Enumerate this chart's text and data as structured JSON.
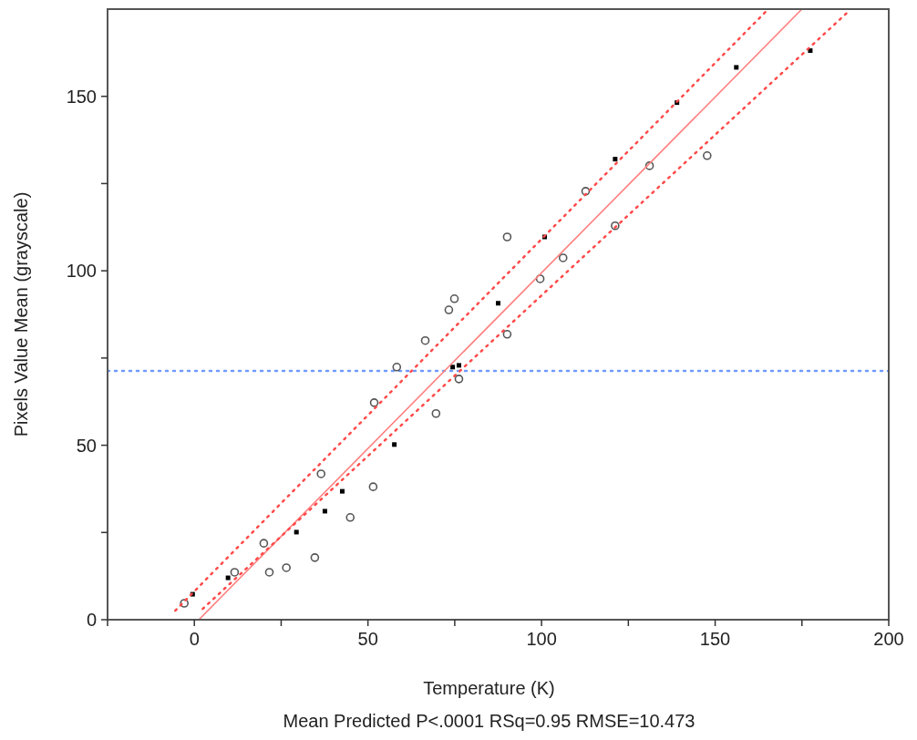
{
  "chart_data": {
    "type": "scatter",
    "xlabel": "Temperature (K)",
    "ylabel": "Pixels Value Mean (grayscale)",
    "annotations": [
      "Mean Predicted P<.0001 RSq=0.95 RMSE=10.473"
    ],
    "xlim": [
      -25,
      200
    ],
    "xticks": [
      {
        "value": -25,
        "label": null
      },
      0,
      {
        "value": 25,
        "label": null
      },
      50,
      {
        "value": 75,
        "label": null
      },
      100,
      {
        "value": 125,
        "label": null
      },
      150,
      {
        "value": 175,
        "label": null
      },
      200
    ],
    "ylim": [
      0,
      175
    ],
    "yticks": [
      0,
      {
        "value": 25,
        "label": null
      },
      50,
      {
        "value": 75,
        "label": null
      },
      100,
      {
        "value": 125,
        "label": null
      },
      150
    ],
    "grid": false,
    "ref_lines": [
      {
        "axis": "y",
        "value": 71.3,
        "color": "#6f9bff",
        "line_style": "dotted"
      }
    ],
    "series": [
      {
        "marker": "square",
        "color": "#000000",
        "x": [
          -0.5,
          9.7,
          29.4,
          37.6,
          42.6,
          57.6,
          74.4,
          76.2,
          87.5,
          100.9,
          121.2,
          139.0,
          156.1,
          177.4
        ],
        "values": [
          7.3,
          12.0,
          25.1,
          31.1,
          36.8,
          50.2,
          72.4,
          72.9,
          90.7,
          109.7,
          132.0,
          148.2,
          158.3,
          163.1
        ]
      },
      {
        "marker": "circle",
        "color": "#555555",
        "x": [
          -2.9,
          11.6,
          20.0,
          21.6,
          26.5,
          34.7,
          36.5,
          44.9,
          51.5,
          51.8,
          58.3,
          66.5,
          69.6,
          73.3,
          74.9,
          76.2,
          90.1,
          90.1,
          99.6,
          106.2,
          112.7,
          121.2,
          131.1,
          147.7
        ],
        "values": [
          4.7,
          13.6,
          21.9,
          13.6,
          14.9,
          17.8,
          41.8,
          29.3,
          38.1,
          62.2,
          72.4,
          80.0,
          59.1,
          88.8,
          92.0,
          69.0,
          109.7,
          81.8,
          97.7,
          103.7,
          122.8,
          112.9,
          130.1,
          133.0
        ]
      },
      {
        "type": "line",
        "line_style": "solid",
        "color": "#ff8080",
        "x": [
          1.3,
          175
        ],
        "values": [
          0,
          175
        ]
      },
      {
        "type": "line",
        "line_style": "dotted",
        "color": "#ff4a4a",
        "x": [
          -5.5,
          165.3
        ],
        "values": [
          2.6,
          175
        ]
      },
      {
        "type": "line",
        "line_style": "dotted",
        "color": "#ff4a4a",
        "x": [
          2.4,
          188.7
        ],
        "values": [
          3.1,
          174.6
        ]
      }
    ]
  }
}
